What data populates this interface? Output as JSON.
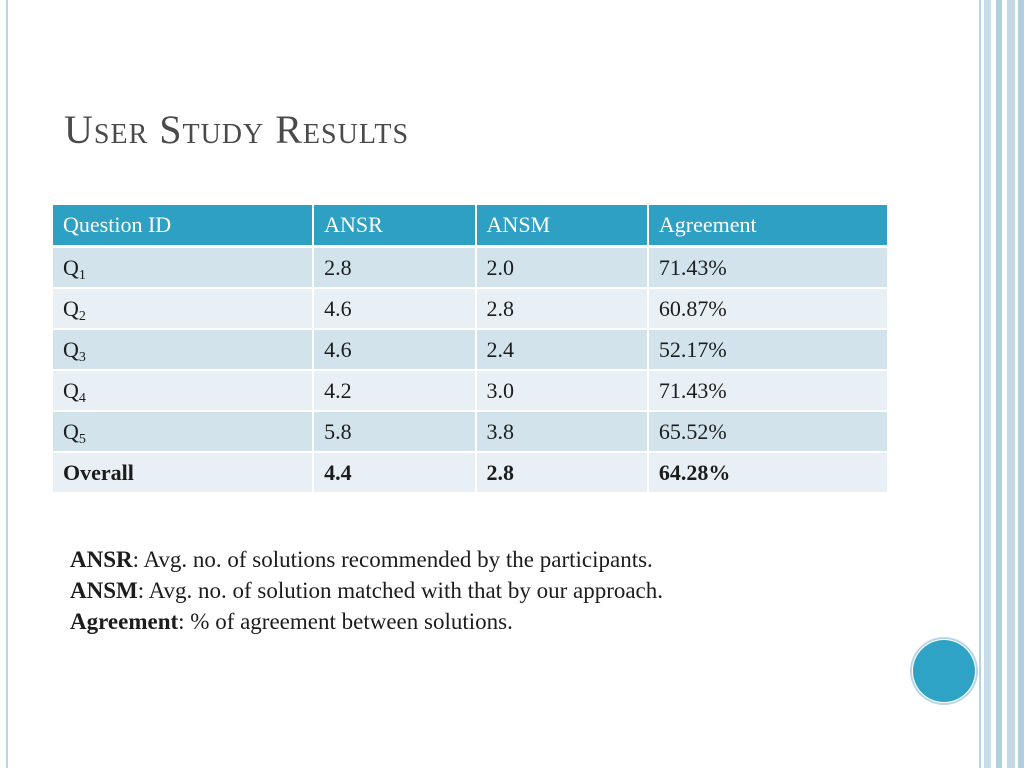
{
  "slide": {
    "title": "User Study Results"
  },
  "table": {
    "headers": [
      "Question ID",
      "ANSR",
      "ANSM",
      "Agreement"
    ],
    "rows": [
      {
        "id": "Q",
        "sub": "1",
        "ansr": "2.8",
        "ansm": "2.0",
        "agreement": "71.43%"
      },
      {
        "id": "Q",
        "sub": "2",
        "ansr": "4.6",
        "ansm": "2.8",
        "agreement": "60.87%"
      },
      {
        "id": "Q",
        "sub": "3",
        "ansr": "4.6",
        "ansm": "2.4",
        "agreement": "52.17%"
      },
      {
        "id": "Q",
        "sub": "4",
        "ansr": "4.2",
        "ansm": "3.0",
        "agreement": "71.43%"
      },
      {
        "id": "Q",
        "sub": "5",
        "ansr": "5.8",
        "ansm": "3.8",
        "agreement": "65.52%"
      }
    ],
    "overall": {
      "id": "Overall",
      "ansr": "4.4",
      "ansm": "2.8",
      "agreement": "64.28%"
    }
  },
  "legend": [
    {
      "term": "ANSR",
      "desc": ": Avg. no. of solutions recommended by the participants."
    },
    {
      "term": "ANSM",
      "desc": ": Avg. no. of solution matched with that by our approach."
    },
    {
      "term": "Agreement",
      "desc": ": % of agreement between solutions."
    }
  ],
  "colors": {
    "header_bg": "#2ea0c3",
    "row_odd": "#d3e3ec",
    "row_even": "#e9f0f5",
    "accent_circle": "#2fa3c6"
  }
}
